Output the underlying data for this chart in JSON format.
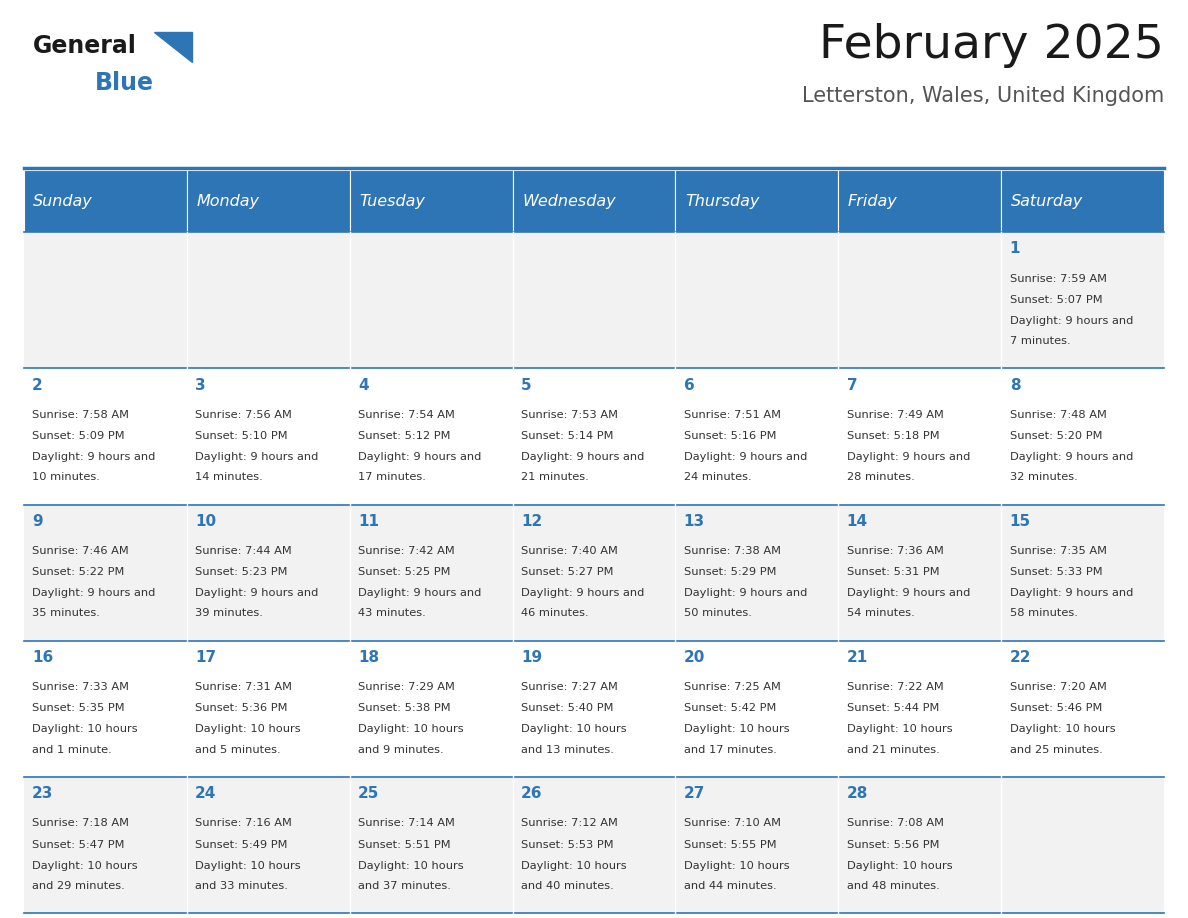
{
  "title": "February 2025",
  "subtitle": "Letterston, Wales, United Kingdom",
  "days_of_week": [
    "Sunday",
    "Monday",
    "Tuesday",
    "Wednesday",
    "Thursday",
    "Friday",
    "Saturday"
  ],
  "header_bg": "#2E75B6",
  "header_text": "#FFFFFF",
  "cell_bg_odd": "#F2F2F2",
  "cell_bg_even": "#FFFFFF",
  "day_number_color": "#2E75B6",
  "text_color": "#333333",
  "border_color": "#2E75B6",
  "calendar_data": [
    [
      null,
      null,
      null,
      null,
      null,
      null,
      {
        "day": 1,
        "sunrise": "7:59 AM",
        "sunset": "5:07 PM",
        "daylight": "9 hours and 7 minutes."
      }
    ],
    [
      {
        "day": 2,
        "sunrise": "7:58 AM",
        "sunset": "5:09 PM",
        "daylight": "9 hours and 10 minutes."
      },
      {
        "day": 3,
        "sunrise": "7:56 AM",
        "sunset": "5:10 PM",
        "daylight": "9 hours and 14 minutes."
      },
      {
        "day": 4,
        "sunrise": "7:54 AM",
        "sunset": "5:12 PM",
        "daylight": "9 hours and 17 minutes."
      },
      {
        "day": 5,
        "sunrise": "7:53 AM",
        "sunset": "5:14 PM",
        "daylight": "9 hours and 21 minutes."
      },
      {
        "day": 6,
        "sunrise": "7:51 AM",
        "sunset": "5:16 PM",
        "daylight": "9 hours and 24 minutes."
      },
      {
        "day": 7,
        "sunrise": "7:49 AM",
        "sunset": "5:18 PM",
        "daylight": "9 hours and 28 minutes."
      },
      {
        "day": 8,
        "sunrise": "7:48 AM",
        "sunset": "5:20 PM",
        "daylight": "9 hours and 32 minutes."
      }
    ],
    [
      {
        "day": 9,
        "sunrise": "7:46 AM",
        "sunset": "5:22 PM",
        "daylight": "9 hours and 35 minutes."
      },
      {
        "day": 10,
        "sunrise": "7:44 AM",
        "sunset": "5:23 PM",
        "daylight": "9 hours and 39 minutes."
      },
      {
        "day": 11,
        "sunrise": "7:42 AM",
        "sunset": "5:25 PM",
        "daylight": "9 hours and 43 minutes."
      },
      {
        "day": 12,
        "sunrise": "7:40 AM",
        "sunset": "5:27 PM",
        "daylight": "9 hours and 46 minutes."
      },
      {
        "day": 13,
        "sunrise": "7:38 AM",
        "sunset": "5:29 PM",
        "daylight": "9 hours and 50 minutes."
      },
      {
        "day": 14,
        "sunrise": "7:36 AM",
        "sunset": "5:31 PM",
        "daylight": "9 hours and 54 minutes."
      },
      {
        "day": 15,
        "sunrise": "7:35 AM",
        "sunset": "5:33 PM",
        "daylight": "9 hours and 58 minutes."
      }
    ],
    [
      {
        "day": 16,
        "sunrise": "7:33 AM",
        "sunset": "5:35 PM",
        "daylight": "10 hours and 1 minute."
      },
      {
        "day": 17,
        "sunrise": "7:31 AM",
        "sunset": "5:36 PM",
        "daylight": "10 hours and 5 minutes."
      },
      {
        "day": 18,
        "sunrise": "7:29 AM",
        "sunset": "5:38 PM",
        "daylight": "10 hours and 9 minutes."
      },
      {
        "day": 19,
        "sunrise": "7:27 AM",
        "sunset": "5:40 PM",
        "daylight": "10 hours and 13 minutes."
      },
      {
        "day": 20,
        "sunrise": "7:25 AM",
        "sunset": "5:42 PM",
        "daylight": "10 hours and 17 minutes."
      },
      {
        "day": 21,
        "sunrise": "7:22 AM",
        "sunset": "5:44 PM",
        "daylight": "10 hours and 21 minutes."
      },
      {
        "day": 22,
        "sunrise": "7:20 AM",
        "sunset": "5:46 PM",
        "daylight": "10 hours and 25 minutes."
      }
    ],
    [
      {
        "day": 23,
        "sunrise": "7:18 AM",
        "sunset": "5:47 PM",
        "daylight": "10 hours and 29 minutes."
      },
      {
        "day": 24,
        "sunrise": "7:16 AM",
        "sunset": "5:49 PM",
        "daylight": "10 hours and 33 minutes."
      },
      {
        "day": 25,
        "sunrise": "7:14 AM",
        "sunset": "5:51 PM",
        "daylight": "10 hours and 37 minutes."
      },
      {
        "day": 26,
        "sunrise": "7:12 AM",
        "sunset": "5:53 PM",
        "daylight": "10 hours and 40 minutes."
      },
      {
        "day": 27,
        "sunrise": "7:10 AM",
        "sunset": "5:55 PM",
        "daylight": "10 hours and 44 minutes."
      },
      {
        "day": 28,
        "sunrise": "7:08 AM",
        "sunset": "5:56 PM",
        "daylight": "10 hours and 48 minutes."
      },
      null
    ]
  ],
  "logo_text_general": "General",
  "logo_text_blue": "Blue",
  "figsize": [
    11.88,
    9.18
  ],
  "dpi": 100
}
